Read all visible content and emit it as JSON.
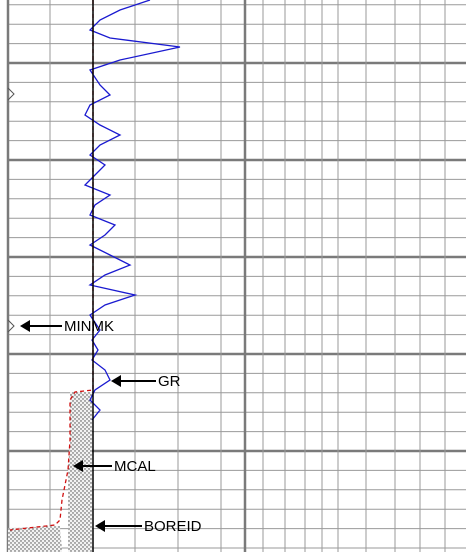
{
  "curve_labels": [
    "MINMK",
    "GR",
    "MCAL",
    "BOREID"
  ]
}
